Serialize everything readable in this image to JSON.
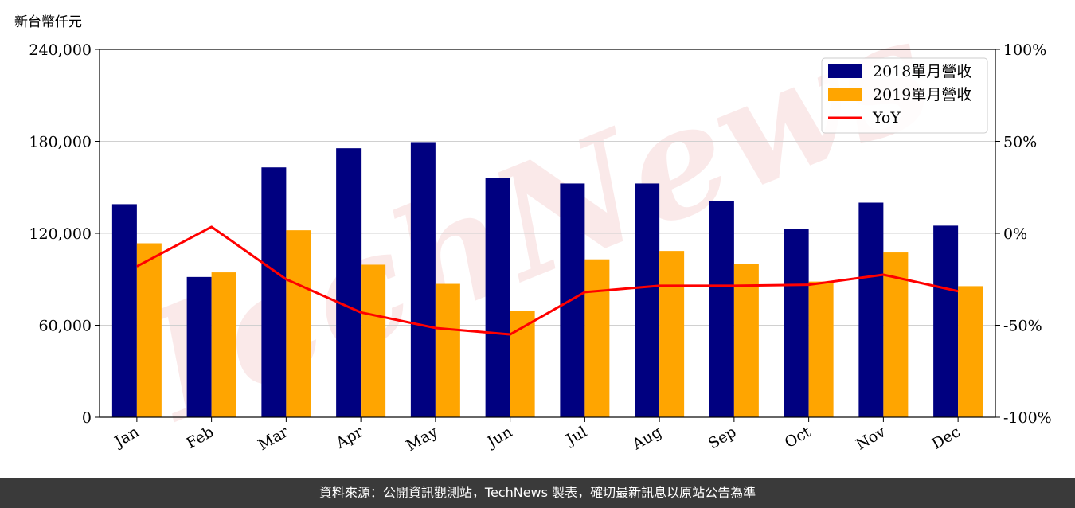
{
  "chart_data": {
    "type": "bar",
    "unit_label": "新台幣仟元",
    "categories": [
      "Jan",
      "Feb",
      "Mar",
      "Apr",
      "May",
      "Jun",
      "Jul",
      "Aug",
      "Sep",
      "Oct",
      "Nov",
      "Dec"
    ],
    "series": [
      {
        "name": "2018單月營收",
        "type": "bar",
        "axis": "left",
        "color": "#000080",
        "values": [
          139000,
          91500,
          163000,
          175500,
          179500,
          156000,
          152500,
          152500,
          141000,
          123000,
          140000,
          125000
        ]
      },
      {
        "name": "2019單月營收",
        "type": "bar",
        "axis": "left",
        "color": "#FFA500",
        "values": [
          113500,
          94500,
          122000,
          99500,
          87000,
          69500,
          103000,
          108500,
          100000,
          88500,
          107500,
          85500
        ]
      },
      {
        "name": "YoY",
        "type": "line",
        "axis": "right",
        "color": "#FF0000",
        "values": [
          -18,
          3.5,
          -25,
          -43,
          -51.5,
          -55,
          -32,
          -28.5,
          -28.5,
          -28,
          -22.5,
          -31.5
        ]
      }
    ],
    "ylim_left": [
      0,
      240000
    ],
    "yticks_left": [
      "0",
      "60,000",
      "120,000",
      "180,000",
      "240,000"
    ],
    "ylim_right": [
      -100,
      100
    ],
    "yticks_right": [
      "-100%",
      "-50%",
      "0%",
      "50%",
      "100%"
    ],
    "grid": "horizontal",
    "legend": "top-right",
    "watermark": "TechNews"
  },
  "footer": {
    "text": "資料來源：公開資訊觀測站，TechNews 製表，確切最新訊息以原站公告為準"
  }
}
